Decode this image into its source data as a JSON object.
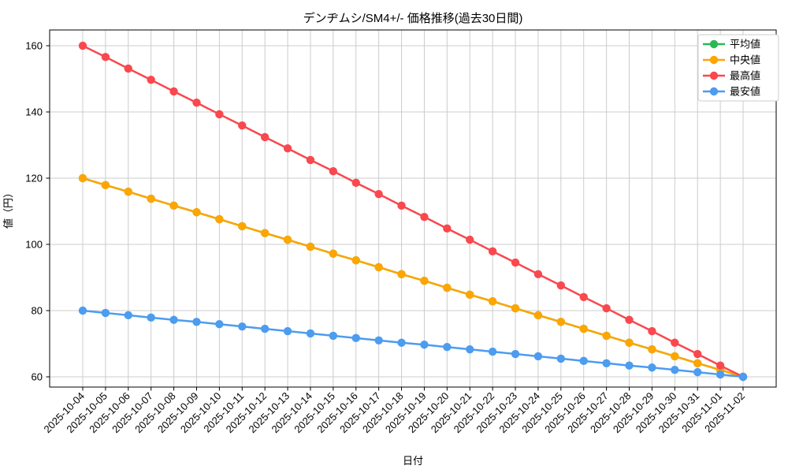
{
  "chart_data": {
    "type": "line",
    "title": "デンヂムシ/SM4+/- 価格推移(過去30日間)",
    "xlabel": "日付",
    "ylabel": "値（円）",
    "grid": true,
    "legend_position": "upper right",
    "marker": "circle",
    "yticks": [
      60,
      80,
      100,
      120,
      140,
      160
    ],
    "ylim": [
      57,
      165
    ],
    "x": [
      "2025-10-04",
      "2025-10-05",
      "2025-10-06",
      "2025-10-07",
      "2025-10-08",
      "2025-10-09",
      "2025-10-10",
      "2025-10-11",
      "2025-10-12",
      "2025-10-13",
      "2025-10-14",
      "2025-10-15",
      "2025-10-16",
      "2025-10-17",
      "2025-10-18",
      "2025-10-19",
      "2025-10-20",
      "2025-10-21",
      "2025-10-22",
      "2025-10-23",
      "2025-10-24",
      "2025-10-25",
      "2025-10-26",
      "2025-10-27",
      "2025-10-28",
      "2025-10-29",
      "2025-10-30",
      "2025-10-31",
      "2025-11-01",
      "2025-11-02"
    ],
    "series": [
      {
        "key": "mean",
        "name": "平均値",
        "color": "#2cb857",
        "values": [
          120.0,
          117.9,
          115.9,
          113.8,
          111.7,
          109.7,
          107.6,
          105.5,
          103.4,
          101.4,
          99.3,
          97.2,
          95.2,
          93.1,
          91.0,
          89.0,
          86.9,
          84.8,
          82.8,
          80.7,
          78.6,
          76.6,
          74.5,
          72.4,
          70.3,
          68.3,
          66.2,
          64.1,
          62.1,
          60.0
        ]
      },
      {
        "key": "median",
        "name": "中央値",
        "color": "#ffa500",
        "values": [
          120.0,
          117.9,
          115.9,
          113.8,
          111.7,
          109.7,
          107.6,
          105.5,
          103.4,
          101.4,
          99.3,
          97.2,
          95.2,
          93.1,
          91.0,
          89.0,
          86.9,
          84.8,
          82.8,
          80.7,
          78.6,
          76.6,
          74.5,
          72.4,
          70.3,
          68.3,
          66.2,
          64.1,
          62.1,
          60.0
        ]
      },
      {
        "key": "max",
        "name": "最高値",
        "color": "#f9484e",
        "values": [
          160.0,
          156.6,
          153.1,
          149.7,
          146.2,
          142.8,
          139.3,
          135.9,
          132.4,
          129.0,
          125.5,
          122.1,
          118.6,
          115.2,
          111.7,
          108.3,
          104.8,
          101.4,
          97.9,
          94.5,
          91.0,
          87.6,
          84.1,
          80.7,
          77.2,
          73.8,
          70.3,
          66.9,
          63.4,
          60.0
        ]
      },
      {
        "key": "min",
        "name": "最安値",
        "color": "#4c9cf0",
        "values": [
          80.0,
          79.3,
          78.6,
          77.9,
          77.2,
          76.6,
          75.9,
          75.2,
          74.5,
          73.8,
          73.1,
          72.4,
          71.7,
          71.0,
          70.3,
          69.7,
          69.0,
          68.3,
          67.6,
          66.9,
          66.2,
          65.5,
          64.8,
          64.1,
          63.4,
          62.8,
          62.1,
          61.4,
          60.7,
          60.0
        ]
      }
    ],
    "colors": {
      "grid": "#cccccc",
      "spine": "#000000",
      "legend_border": "#cccccc",
      "background": "#ffffff"
    }
  }
}
